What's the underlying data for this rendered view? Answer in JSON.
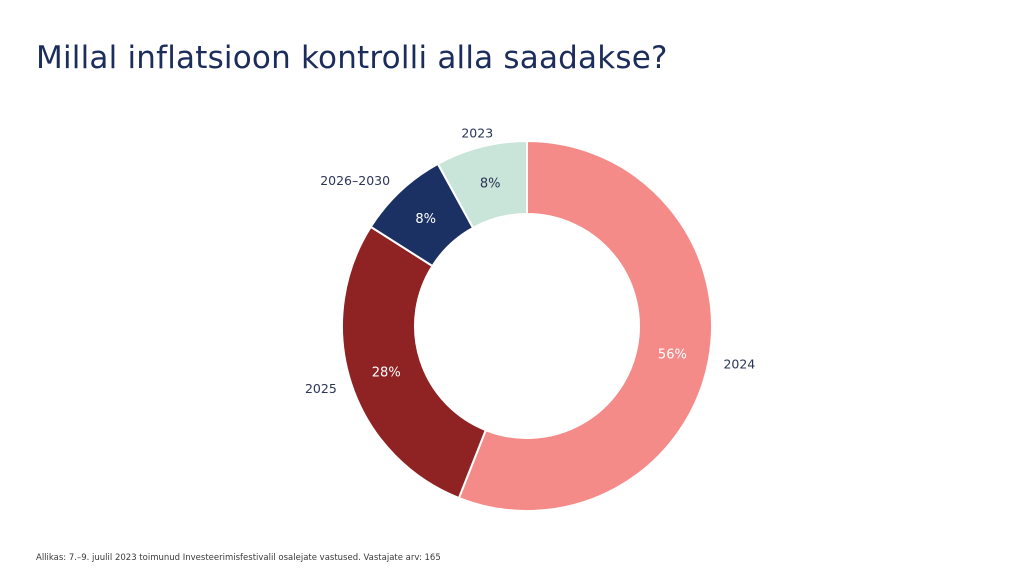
{
  "chart_data": {
    "type": "pie",
    "variant": "donut",
    "title": "Millal inflatsioon kontrolli alla saadakse?",
    "start": "top",
    "direction": "clockwise",
    "slices": [
      {
        "label": "2024",
        "value": 56,
        "value_label": "56%",
        "color": "#f48b88",
        "text_color": "#ffffff"
      },
      {
        "label": "2025",
        "value": 28,
        "value_label": "28%",
        "color": "#8f2222",
        "text_color": "#ffffff"
      },
      {
        "label": "2026–2030",
        "value": 8,
        "value_label": "8%",
        "color": "#1c3163",
        "text_color": "#ffffff"
      },
      {
        "label": "2023",
        "value": 8,
        "value_label": "8%",
        "color": "#c9e4d8",
        "text_color": "#2a3558"
      }
    ]
  },
  "footer": {
    "source": "Allikas: 7.–9. juulil 2023 toimunud Investeerimisfestivalil osalejate vastused. Vastajate arv: 165"
  }
}
